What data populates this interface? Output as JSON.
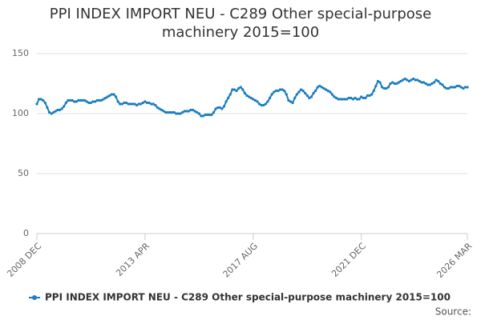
{
  "chart_data": {
    "type": "line",
    "title": "PPI INDEX IMPORT NEU - C289 Other special-purpose machinery 2015=100",
    "source": "Source:",
    "categories": [
      "2008 DEC",
      null,
      null,
      null,
      null,
      null,
      null,
      null,
      null,
      null,
      null,
      null,
      null,
      null,
      null,
      null,
      null,
      null,
      null,
      null,
      null,
      null,
      null,
      null,
      null,
      null,
      null,
      null,
      null,
      null,
      null,
      null,
      null,
      null,
      null,
      null,
      null,
      null,
      null,
      null,
      null,
      null,
      null,
      null,
      null,
      null,
      null,
      null,
      null,
      null,
      null,
      null,
      "2013 APR",
      null,
      null,
      null,
      null,
      null,
      null,
      null,
      null,
      null,
      null,
      null,
      null,
      null,
      null,
      null,
      null,
      null,
      null,
      null,
      null,
      null,
      null,
      null,
      null,
      null,
      null,
      null,
      null,
      null,
      null,
      null,
      null,
      null,
      null,
      null,
      null,
      null,
      null,
      null,
      null,
      null,
      null,
      null,
      null,
      null,
      null,
      null,
      null,
      null,
      null,
      null,
      "2017 AUG",
      null,
      null,
      null,
      null,
      null,
      null,
      null,
      null,
      null,
      null,
      null,
      null,
      null,
      null,
      null,
      null,
      null,
      null,
      null,
      null,
      null,
      null,
      null,
      null,
      null,
      null,
      null,
      null,
      null,
      null,
      null,
      null,
      null,
      null,
      null,
      null,
      null,
      null,
      null,
      null,
      null,
      null,
      null,
      null,
      null,
      null,
      null,
      null,
      null,
      null,
      null,
      "2021 DEC",
      null,
      null,
      null,
      null,
      null,
      null,
      null,
      null,
      null,
      null,
      null,
      null,
      null,
      null,
      null,
      null,
      null,
      null,
      null,
      null,
      null,
      null,
      null,
      null,
      null,
      null,
      null,
      null,
      null,
      null,
      null,
      null,
      null,
      null,
      null,
      null,
      null,
      null,
      null,
      null,
      null,
      null,
      null,
      null,
      null,
      null,
      null,
      null,
      null,
      null,
      "2026 MAR"
    ],
    "series": [
      {
        "name": "PPI INDEX IMPORT NEU - C289 Other special-purpose machinery 2015=100",
        "color": "#1a7dbf",
        "values": [
          108,
          112,
          112,
          111,
          109,
          105,
          101,
          100,
          101,
          102,
          103,
          103,
          104,
          106,
          109,
          111,
          111,
          111,
          110,
          110,
          111,
          111,
          111,
          111,
          110,
          109,
          109,
          110,
          110,
          111,
          111,
          111,
          112,
          113,
          114,
          115,
          116,
          116,
          114,
          110,
          108,
          108,
          109,
          109,
          108,
          108,
          108,
          108,
          107,
          108,
          108,
          109,
          110,
          109,
          109,
          108,
          108,
          107,
          105,
          104,
          103,
          102,
          101,
          101,
          101,
          101,
          101,
          100,
          100,
          100,
          101,
          102,
          102,
          102,
          103,
          103,
          102,
          101,
          100,
          98,
          98,
          99,
          99,
          99,
          99,
          101,
          104,
          105,
          105,
          104,
          106,
          110,
          113,
          116,
          120,
          120,
          119,
          121,
          122,
          120,
          117,
          115,
          114,
          113,
          112,
          111,
          110,
          108,
          107,
          107,
          108,
          110,
          113,
          116,
          118,
          119,
          119,
          120,
          120,
          119,
          116,
          111,
          110,
          109,
          113,
          116,
          118,
          120,
          119,
          117,
          115,
          113,
          114,
          117,
          119,
          122,
          123,
          122,
          121,
          120,
          119,
          118,
          116,
          114,
          113,
          112,
          112,
          112,
          112,
          112,
          113,
          113,
          112,
          113,
          112,
          112,
          114,
          113,
          113,
          115,
          115,
          116,
          119,
          123,
          127,
          126,
          122,
          121,
          121,
          122,
          125,
          126,
          125,
          125,
          126,
          127,
          128,
          129,
          128,
          127,
          128,
          129,
          128,
          128,
          127,
          126,
          126,
          125,
          124,
          124,
          125,
          126,
          128,
          127,
          125,
          124,
          122,
          121,
          121,
          122,
          122,
          122,
          123,
          123,
          122,
          121,
          122,
          122
        ]
      }
    ],
    "ylim": [
      0,
      150
    ],
    "yticks": [
      0,
      50,
      100,
      150
    ],
    "grid": true
  }
}
